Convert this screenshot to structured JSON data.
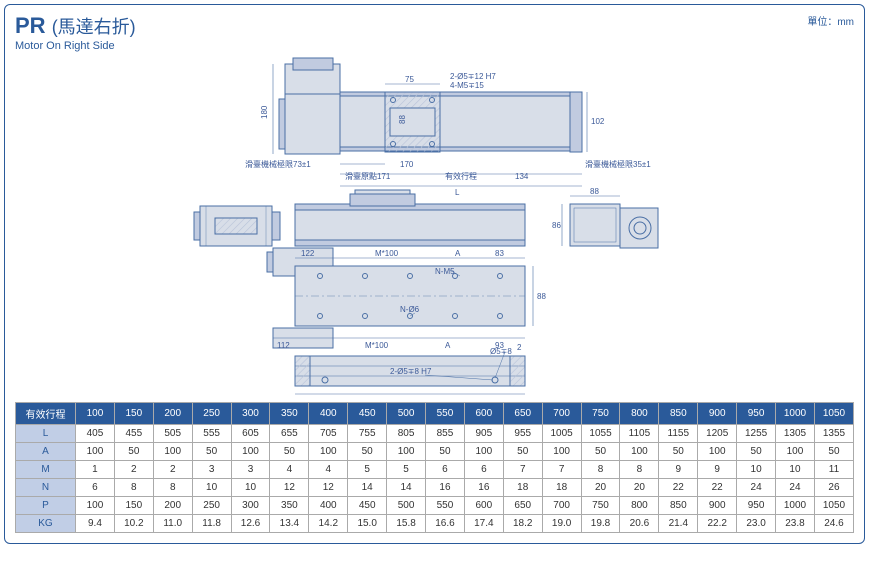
{
  "header": {
    "code": "PR",
    "cjk": "(馬達右折)",
    "sub": "Motor On Right Side",
    "unit": "單位：mm"
  },
  "diagram": {
    "colors": {
      "stroke": "#4a6fa5",
      "fill": "#d8dee8",
      "fill2": "#c1cbe0",
      "hatch": "#b8c3d8"
    },
    "labels": {
      "d180": "180",
      "d75": "75",
      "d2phi5": "2-Ø5∓12  H7",
      "d4m5": "4-M5∓15",
      "d88a": "88",
      "d102": "102",
      "sl_mech_l": "滑臺機械極限73±1",
      "sl_orig": "滑臺原點171",
      "d170": "170",
      "eff_stroke": "有效行程",
      "d134": "134",
      "sl_mech_r": "滑臺機械極限35±1",
      "dL": "L",
      "d88b": "88",
      "d86": "86",
      "d122": "122",
      "dM100a": "M*100",
      "dAa": "A",
      "d83": "83",
      "dNM5": "N-M5",
      "d88c": "88",
      "d112a": "112",
      "dM100b": "M*100",
      "dAb": "A",
      "d93": "93",
      "dN06": "N-Ø6",
      "d2phi5b": "2-Ø5∓8  H7",
      "dphi5": "Ø5∓8",
      "d2": "2",
      "d112b": "112",
      "d100pm": "100±0.02",
      "dP": "P"
    }
  },
  "table": {
    "row_header": "有效行程",
    "strokes": [
      "100",
      "150",
      "200",
      "250",
      "300",
      "350",
      "400",
      "450",
      "500",
      "550",
      "600",
      "650",
      "700",
      "750",
      "800",
      "850",
      "900",
      "950",
      "1000",
      "1050"
    ],
    "rows": [
      {
        "k": "L",
        "v": [
          "405",
          "455",
          "505",
          "555",
          "605",
          "655",
          "705",
          "755",
          "805",
          "855",
          "905",
          "955",
          "1005",
          "1055",
          "1105",
          "1155",
          "1205",
          "1255",
          "1305",
          "1355"
        ]
      },
      {
        "k": "A",
        "v": [
          "100",
          "50",
          "100",
          "50",
          "100",
          "50",
          "100",
          "50",
          "100",
          "50",
          "100",
          "50",
          "100",
          "50",
          "100",
          "50",
          "100",
          "50",
          "100",
          "50"
        ]
      },
      {
        "k": "M",
        "v": [
          "1",
          "2",
          "2",
          "3",
          "3",
          "4",
          "4",
          "5",
          "5",
          "6",
          "6",
          "7",
          "7",
          "8",
          "8",
          "9",
          "9",
          "10",
          "10",
          "11"
        ]
      },
      {
        "k": "N",
        "v": [
          "6",
          "8",
          "8",
          "10",
          "10",
          "12",
          "12",
          "14",
          "14",
          "16",
          "16",
          "18",
          "18",
          "20",
          "20",
          "22",
          "22",
          "24",
          "24",
          "26"
        ]
      },
      {
        "k": "P",
        "v": [
          "100",
          "150",
          "200",
          "250",
          "300",
          "350",
          "400",
          "450",
          "500",
          "550",
          "600",
          "650",
          "700",
          "750",
          "800",
          "850",
          "900",
          "950",
          "1000",
          "1050"
        ]
      },
      {
        "k": "KG",
        "v": [
          "9.4",
          "10.2",
          "11.0",
          "11.8",
          "12.6",
          "13.4",
          "14.2",
          "15.0",
          "15.8",
          "16.6",
          "17.4",
          "18.2",
          "19.0",
          "19.8",
          "20.6",
          "21.4",
          "22.2",
          "23.0",
          "23.8",
          "24.6"
        ]
      }
    ]
  }
}
